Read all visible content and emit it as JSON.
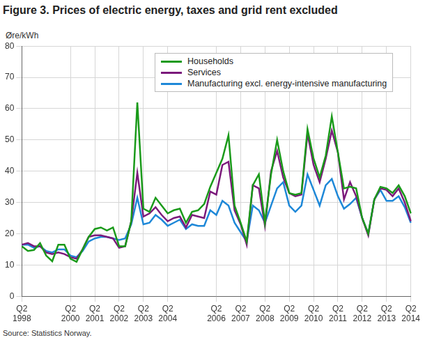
{
  "chart_data": {
    "type": "line",
    "title": "Figure 3. Prices of electric energy, taxes and grid rent excluded",
    "y_label": "Øre/kWh",
    "source": "Source: Statistics Norway.",
    "categories": [
      "Q2 1998",
      null,
      null,
      null,
      null,
      null,
      null,
      null,
      "Q2 2000",
      null,
      null,
      null,
      "Q2 2001",
      null,
      null,
      null,
      "Q2 2002",
      null,
      null,
      null,
      "Q2 2003",
      null,
      null,
      null,
      "Q2 2004",
      null,
      null,
      null,
      null,
      null,
      null,
      null,
      "Q2 2006",
      null,
      null,
      null,
      "Q2 2007",
      null,
      null,
      null,
      "Q2 2008",
      null,
      null,
      null,
      "Q2 2009",
      null,
      null,
      null,
      "Q2 2010",
      null,
      null,
      null,
      "Q2 2011",
      null,
      null,
      null,
      "Q2 2012",
      null,
      null,
      null,
      "Q2 2013",
      null,
      null,
      null,
      "Q2 2014"
    ],
    "series": [
      {
        "name": "Households",
        "color": "#1a9a1a",
        "values": [
          16,
          14.5,
          14.8,
          17,
          13,
          11.2,
          16.5,
          16.5,
          12,
          11,
          15,
          19,
          21.5,
          22,
          21,
          22,
          16,
          16,
          24,
          62,
          28,
          27,
          31.5,
          29,
          26.5,
          27.5,
          28,
          23.5,
          27,
          27.5,
          29.5,
          35,
          39.5,
          44,
          51.5,
          29,
          23.5,
          17.5,
          35.5,
          39,
          23.5,
          39,
          50,
          40,
          33,
          32.5,
          33,
          53.5,
          44,
          38,
          45,
          57.5,
          46,
          34.5,
          35,
          34.5,
          25,
          20,
          31,
          35,
          34.5,
          33,
          35.5,
          32,
          26.5
        ]
      },
      {
        "name": "Services",
        "color": "#7b1a7b",
        "values": [
          16.5,
          17,
          16,
          16,
          14,
          13.5,
          14,
          13.5,
          12.5,
          12,
          15,
          19,
          19.5,
          19.5,
          19,
          18.5,
          15.5,
          16,
          24,
          39.5,
          25.5,
          26.5,
          28.5,
          26,
          24,
          25,
          25.5,
          22,
          26,
          25.5,
          25,
          33.5,
          32.5,
          42,
          43,
          27.5,
          23,
          16.5,
          35.5,
          34.5,
          22.5,
          40,
          46.5,
          38,
          33,
          32,
          32.5,
          52,
          42,
          36.5,
          44,
          53,
          46,
          31,
          36.5,
          32,
          25,
          19.5,
          31,
          34.5,
          34,
          32,
          34.5,
          30,
          24
        ]
      },
      {
        "name": "Manufacturing excl. energy-intensive manufacturing",
        "color": "#1e88d8",
        "values": [
          16.5,
          16.5,
          15.5,
          16,
          14.5,
          14,
          15,
          15,
          13,
          12.5,
          14.5,
          17.5,
          18.5,
          19,
          19,
          18.5,
          18,
          18.5,
          23,
          31.5,
          23,
          23.5,
          26,
          24.5,
          22.5,
          23.5,
          24.5,
          21.5,
          23,
          22.5,
          22.5,
          27.5,
          26,
          30.5,
          29,
          23.5,
          20.5,
          17.5,
          29,
          27.5,
          23.5,
          29,
          34.5,
          36.5,
          29,
          27,
          29,
          39,
          34,
          29,
          35.5,
          37.5,
          32,
          28,
          29.5,
          31.5,
          25,
          20,
          31,
          34,
          30.5,
          30.5,
          32,
          28.5,
          23.5
        ]
      }
    ],
    "ylim": [
      0,
      80
    ],
    "yticks": [
      0,
      10,
      20,
      30,
      40,
      50,
      60,
      70,
      80
    ],
    "grid": true,
    "legend": "top right"
  }
}
